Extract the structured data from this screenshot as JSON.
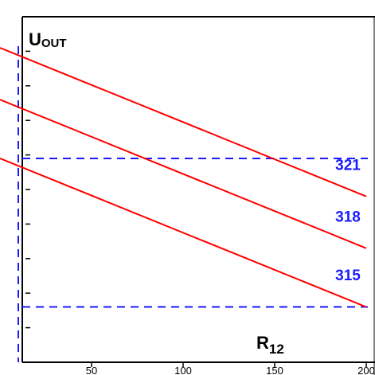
{
  "chart_data": {
    "type": "line",
    "ylabel": {
      "main": "U",
      "sub": "OUT"
    },
    "xlabel": {
      "main": "R",
      "sub": "12"
    },
    "xlim": [
      0,
      200
    ],
    "ylim": [
      0,
      10
    ],
    "x_ticks": [
      50,
      100,
      150,
      200
    ],
    "x_tick_labels": [
      "50",
      "100",
      "150",
      "200"
    ],
    "y_tick_count": 11,
    "grid": false,
    "series": [
      {
        "name": "321",
        "x": [
          0,
          200
        ],
        "y": [
          9.1,
          4.8
        ]
      },
      {
        "name": "318",
        "x": [
          0,
          200
        ],
        "y": [
          7.6,
          3.3
        ]
      },
      {
        "name": "315",
        "x": [
          0,
          200
        ],
        "y": [
          5.9,
          1.6
        ]
      }
    ],
    "reference_lines": [
      {
        "orientation": "horizontal",
        "y": 5.9
      },
      {
        "orientation": "horizontal",
        "y": 1.6
      },
      {
        "orientation": "vertical",
        "x": 10
      }
    ],
    "colors": {
      "series": "#ff0000",
      "reference": "#1a1aff",
      "labels": "#1a1aff",
      "axes": "#000000"
    }
  }
}
